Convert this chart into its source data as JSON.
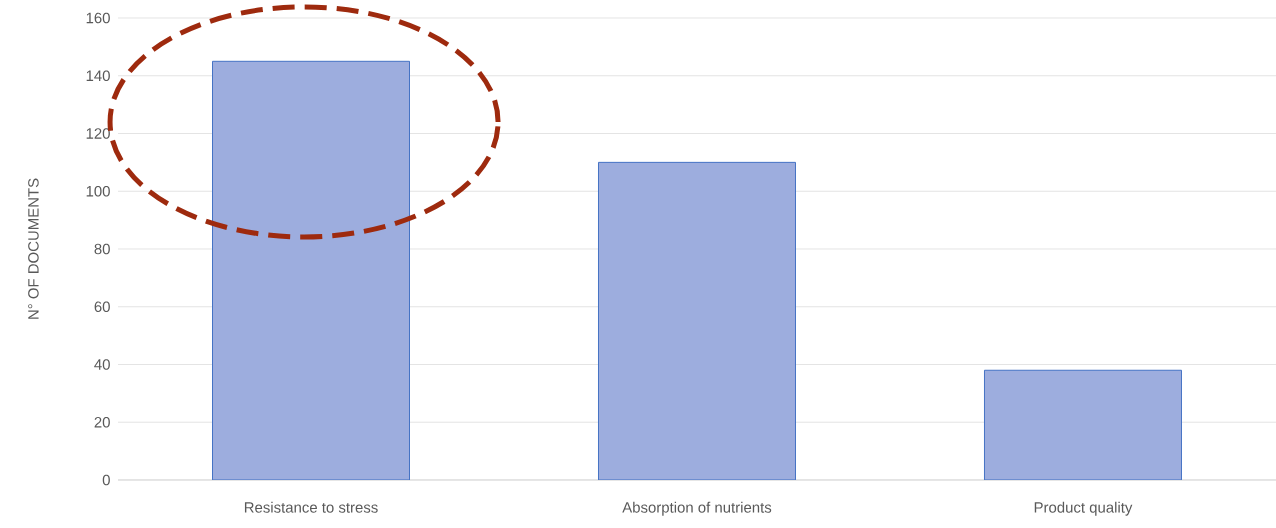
{
  "chart_data": {
    "type": "bar",
    "ylabel": "N° OF DOCUMENTS",
    "categories": [
      "Resistance to stress",
      "Absorption of nutrients",
      "Product quality"
    ],
    "values": [
      145,
      110,
      38
    ],
    "color": "#9dadde",
    "ylim": [
      0,
      160
    ],
    "yticks": [
      0,
      20,
      40,
      60,
      80,
      100,
      120,
      140,
      160
    ],
    "grid": "y"
  }
}
